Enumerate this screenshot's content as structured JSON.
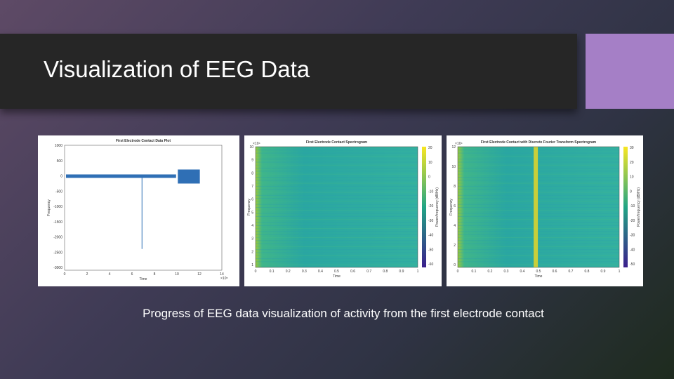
{
  "header": {
    "title": "Visualization of EEG Data"
  },
  "caption": "Progress of EEG data visualization of activity from the first electrode contact",
  "figures": [
    {
      "type": "line",
      "title": "First Electrode Contact Data Plot",
      "x_label": "Time",
      "y_label": "Frequency",
      "x_ticks": [
        "0",
        "2",
        "4",
        "6",
        "8",
        "10",
        "12",
        "14"
      ],
      "x_exponent": "×10⁵",
      "y_ticks": [
        "1000",
        "500",
        "0",
        "-500",
        "-1000",
        "-1500",
        "-2000",
        "-2500",
        "-3000"
      ]
    },
    {
      "type": "spectrogram",
      "title": "First Electrode Contact Spectrogram",
      "x_label": "Time",
      "y_label": "Frequency",
      "x_ticks": [
        "0",
        "0.1",
        "0.2",
        "0.3",
        "0.4",
        "0.5",
        "0.6",
        "0.7",
        "0.8",
        "0.9",
        "1"
      ],
      "y_exponent": "×10⁴",
      "y_ticks": [
        "10",
        "9",
        "8",
        "7",
        "6",
        "5",
        "4",
        "3",
        "2",
        "1"
      ],
      "colorbar_label": "Power/frequency (dB/Hz)",
      "colorbar_ticks": [
        "20",
        "10",
        "0",
        "-10",
        "-20",
        "-30",
        "-40",
        "-50",
        "-60"
      ]
    },
    {
      "type": "spectrogram",
      "title": "First Electrode Contact with Discrete Fourier Transform Spectrogram",
      "x_label": "Time",
      "y_label": "Frequency",
      "x_ticks": [
        "0",
        "0.1",
        "0.2",
        "0.3",
        "0.4",
        "0.5",
        "0.6",
        "0.7",
        "0.8",
        "0.9",
        "1"
      ],
      "y_exponent": "×10⁴",
      "y_ticks": [
        "12",
        "10",
        "8",
        "6",
        "4",
        "2",
        "0"
      ],
      "colorbar_label": "Power/frequency (dB/Hz)",
      "colorbar_ticks": [
        "30",
        "20",
        "10",
        "0",
        "-10",
        "-20",
        "-30",
        "-40",
        "-50"
      ],
      "band": true
    }
  ]
}
